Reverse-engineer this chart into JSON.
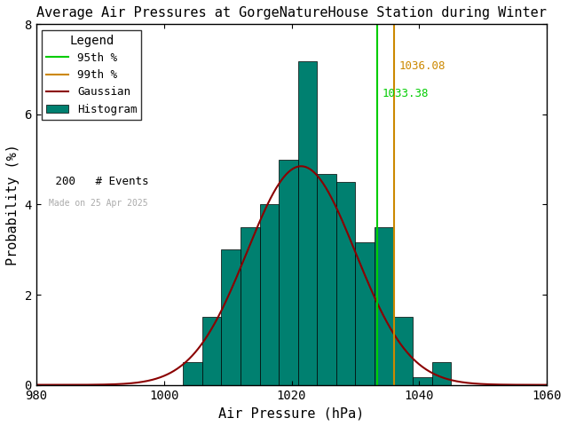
{
  "title": "Average Air Pressures at GorgeNatureHouse Station during Winter",
  "xlabel": "Air Pressure (hPa)",
  "ylabel": "Probability (%)",
  "xlim": [
    980,
    1060
  ],
  "ylim": [
    0,
    8
  ],
  "bin_left_edges": [
    1003,
    1006,
    1009,
    1012,
    1015,
    1018,
    1021,
    1024,
    1027,
    1030,
    1033,
    1036,
    1039,
    1042
  ],
  "bin_heights": [
    0.5,
    1.5,
    3.0,
    3.5,
    4.0,
    5.0,
    7.17,
    4.67,
    4.5,
    3.17,
    3.5,
    1.5,
    0.17,
    0.5
  ],
  "bin_width": 3,
  "bar_color": "#008070",
  "bar_edge_color": "#000000",
  "gaussian_color": "#8b0000",
  "percentile_95_color": "#00cc00",
  "percentile_99_color": "#cc8800",
  "percentile_95_value": 1033.38,
  "percentile_99_value": 1036.08,
  "n_events": 200,
  "gauss_mean": 1021.5,
  "gauss_std": 8.5,
  "gauss_peak": 4.85,
  "made_on_text": "Made on 25 Apr 2025",
  "background_color": "#ffffff",
  "yticks": [
    0,
    2,
    4,
    6,
    8
  ],
  "xticks": [
    980,
    1000,
    1020,
    1040,
    1060
  ]
}
